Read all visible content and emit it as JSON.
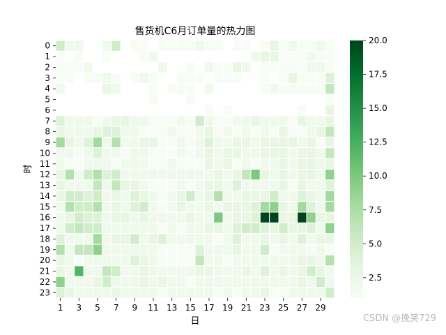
{
  "watermark": "CSDN @挽笑729",
  "chart_data": {
    "type": "heatmap",
    "title": "售货机C6月订单量的热力图",
    "xlabel": "日",
    "ylabel": "时",
    "x": [
      1,
      2,
      3,
      4,
      5,
      6,
      7,
      8,
      9,
      10,
      11,
      12,
      13,
      14,
      15,
      16,
      17,
      18,
      19,
      20,
      21,
      22,
      23,
      24,
      25,
      26,
      27,
      28,
      29,
      30
    ],
    "x_tick_labels": [
      "1",
      "3",
      "5",
      "7",
      "9",
      "11",
      "13",
      "15",
      "17",
      "19",
      "21",
      "23",
      "25",
      "27",
      "29"
    ],
    "y": [
      0,
      1,
      2,
      3,
      4,
      5,
      6,
      7,
      8,
      9,
      10,
      11,
      12,
      13,
      14,
      15,
      16,
      17,
      18,
      19,
      20,
      21,
      22,
      23
    ],
    "y_tick_labels": [
      "0",
      "1",
      "2",
      "3",
      "4",
      "5",
      "6",
      "7",
      "8",
      "9",
      "10",
      "11",
      "12",
      "13",
      "14",
      "15",
      "16",
      "17",
      "18",
      "19",
      "20",
      "21",
      "22",
      "23"
    ],
    "colorbar": {
      "min": 1.0,
      "max": 20.0,
      "ticks": [
        2.5,
        5.0,
        7.5,
        10.0,
        12.5,
        15.0,
        17.5,
        20.0
      ],
      "tick_labels": [
        "2.5",
        "5.0",
        "7.5",
        "10.0",
        "12.5",
        "15.0",
        "17.5",
        "20.0"
      ],
      "colormap": "Greens",
      "colors": [
        "#f7fcf5",
        "#e5f5e0",
        "#c7e9c0",
        "#a1d99b",
        "#74c476",
        "#41ab5d",
        "#238b45",
        "#006d2c",
        "#00441b"
      ]
    },
    "values": [
      [
        5,
        2,
        2,
        0,
        0,
        2,
        5,
        0,
        1,
        1,
        0,
        1,
        1,
        1,
        1,
        2,
        1,
        1,
        0,
        1,
        1,
        0,
        1,
        3,
        1,
        2,
        1,
        1,
        2,
        1
      ],
      [
        1,
        0,
        1,
        0,
        0,
        1,
        0,
        0,
        0,
        1,
        2,
        0,
        0,
        0,
        0,
        0,
        0,
        0,
        0,
        0,
        0,
        2,
        3,
        3,
        1,
        1,
        1,
        2,
        1,
        1
      ],
      [
        1,
        1,
        1,
        2,
        0,
        0,
        0,
        0,
        0,
        0,
        0,
        2,
        0,
        0,
        1,
        0,
        2,
        1,
        1,
        3,
        2,
        0,
        1,
        1,
        1,
        1,
        1,
        2,
        2,
        1
      ],
      [
        1,
        1,
        0,
        1,
        1,
        2,
        1,
        0,
        1,
        2,
        1,
        0,
        0,
        1,
        1,
        1,
        0,
        1,
        1,
        1,
        0,
        0,
        1,
        0,
        1,
        3,
        1,
        1,
        1,
        4
      ],
      [
        2,
        0,
        0,
        0,
        0,
        3,
        2,
        0,
        0,
        0,
        1,
        0,
        1,
        1,
        1,
        0,
        2,
        0,
        0,
        0,
        0,
        0,
        1,
        2,
        1,
        1,
        1,
        1,
        1,
        6
      ],
      [
        0,
        0,
        0,
        0,
        0,
        0,
        0,
        0,
        0,
        0,
        1,
        0,
        0,
        0,
        1,
        0,
        0,
        0,
        0,
        0,
        0,
        0,
        0,
        0,
        0,
        0,
        0,
        0,
        0,
        1
      ],
      [
        0,
        0,
        0,
        0,
        0,
        0,
        0,
        0,
        0,
        0,
        0,
        0,
        0,
        0,
        0,
        0,
        1,
        0,
        1,
        0,
        0,
        0,
        0,
        0,
        0,
        0,
        1,
        0,
        0,
        3
      ],
      [
        4,
        2,
        2,
        2,
        1,
        2,
        3,
        3,
        2,
        2,
        1,
        1,
        1,
        2,
        1,
        5,
        2,
        1,
        1,
        2,
        2,
        3,
        2,
        2,
        2,
        1,
        3,
        2,
        2,
        3
      ],
      [
        3,
        2,
        2,
        2,
        3,
        4,
        4,
        2,
        2,
        1,
        1,
        1,
        2,
        1,
        1,
        2,
        3,
        1,
        2,
        1,
        2,
        1,
        2,
        1,
        3,
        1,
        1,
        2,
        3,
        6
      ],
      [
        8,
        3,
        2,
        4,
        8,
        2,
        7,
        2,
        2,
        3,
        3,
        1,
        1,
        2,
        1,
        2,
        4,
        2,
        2,
        3,
        3,
        2,
        3,
        3,
        3,
        3,
        2,
        3,
        1,
        3
      ],
      [
        2,
        2,
        1,
        2,
        4,
        2,
        2,
        1,
        2,
        2,
        1,
        1,
        1,
        2,
        1,
        2,
        3,
        2,
        3,
        3,
        2,
        2,
        3,
        3,
        3,
        2,
        3,
        3,
        2,
        6
      ],
      [
        2,
        1,
        1,
        2,
        2,
        2,
        1,
        2,
        2,
        2,
        1,
        1,
        2,
        1,
        1,
        1,
        3,
        2,
        3,
        1,
        2,
        1,
        2,
        2,
        3,
        2,
        3,
        3,
        2,
        3
      ],
      [
        3,
        7,
        2,
        5,
        7,
        4,
        5,
        2,
        2,
        2,
        2,
        2,
        2,
        2,
        2,
        2,
        2,
        3,
        2,
        3,
        6,
        10,
        3,
        2,
        3,
        2,
        3,
        3,
        2,
        9
      ],
      [
        3,
        2,
        2,
        2,
        6,
        2,
        6,
        3,
        3,
        2,
        1,
        1,
        1,
        2,
        1,
        2,
        3,
        3,
        2,
        4,
        2,
        2,
        2,
        2,
        3,
        1,
        3,
        2,
        2,
        4
      ],
      [
        3,
        5,
        5,
        4,
        5,
        2,
        3,
        2,
        4,
        3,
        2,
        1,
        2,
        3,
        5,
        2,
        3,
        7,
        2,
        2,
        3,
        3,
        3,
        5,
        2,
        2,
        4,
        3,
        2,
        8
      ],
      [
        2,
        7,
        5,
        5,
        7,
        2,
        3,
        2,
        4,
        5,
        2,
        1,
        2,
        3,
        2,
        2,
        3,
        2,
        3,
        3,
        3,
        4,
        8,
        9,
        3,
        2,
        8,
        4,
        2,
        8
      ],
      [
        2,
        3,
        5,
        4,
        4,
        2,
        3,
        3,
        2,
        3,
        2,
        2,
        2,
        2,
        3,
        2,
        2,
        10,
        2,
        3,
        3,
        4,
        20,
        20,
        3,
        3,
        20,
        9,
        3,
        3
      ],
      [
        2,
        5,
        6,
        5,
        5,
        2,
        2,
        2,
        2,
        2,
        2,
        1,
        2,
        1,
        2,
        2,
        3,
        3,
        2,
        4,
        5,
        5,
        4,
        3,
        5,
        3,
        3,
        4,
        2,
        9
      ],
      [
        4,
        2,
        2,
        2,
        8,
        2,
        3,
        3,
        5,
        2,
        3,
        4,
        2,
        2,
        2,
        2,
        2,
        1,
        2,
        4,
        2,
        2,
        3,
        2,
        3,
        2,
        4,
        2,
        3,
        3
      ],
      [
        7,
        2,
        6,
        6,
        9,
        2,
        2,
        2,
        2,
        2,
        2,
        1,
        1,
        1,
        1,
        4,
        2,
        2,
        2,
        3,
        2,
        2,
        5,
        1,
        2,
        2,
        2,
        1,
        2,
        1
      ],
      [
        3,
        2,
        1,
        2,
        2,
        2,
        2,
        2,
        4,
        3,
        2,
        1,
        1,
        1,
        1,
        6,
        2,
        2,
        1,
        2,
        2,
        2,
        2,
        2,
        2,
        2,
        3,
        3,
        2,
        7
      ],
      [
        3,
        2,
        12,
        2,
        2,
        6,
        5,
        2,
        2,
        3,
        2,
        2,
        2,
        2,
        2,
        3,
        3,
        2,
        2,
        2,
        3,
        2,
        4,
        2,
        3,
        2,
        3,
        5,
        3,
        2
      ],
      [
        9,
        2,
        2,
        2,
        3,
        5,
        2,
        2,
        2,
        3,
        2,
        3,
        2,
        2,
        1,
        2,
        2,
        2,
        2,
        2,
        2,
        2,
        2,
        2,
        2,
        2,
        3,
        2,
        5,
        2
      ],
      [
        4,
        3,
        2,
        2,
        2,
        2,
        3,
        2,
        2,
        2,
        2,
        1,
        2,
        2,
        2,
        2,
        2,
        1,
        2,
        1,
        2,
        2,
        3,
        1,
        1,
        2,
        2,
        2,
        2,
        5
      ]
    ]
  }
}
